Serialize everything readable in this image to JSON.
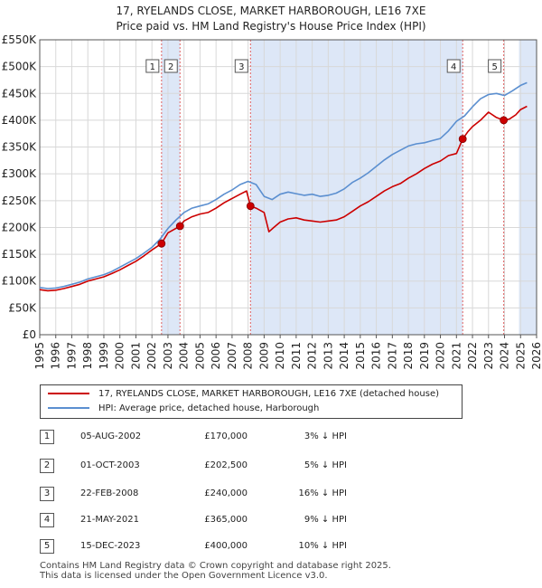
{
  "title_line1": "17, RYELANDS CLOSE, MARKET HARBOROUGH, LE16 7XE",
  "title_line2": "Price paid vs. HM Land Registry's House Price Index (HPI)",
  "colors": {
    "property": "#cc0000",
    "hpi": "#5b8fd0",
    "sale_vline": "#e06060",
    "shade": "#dde7f7"
  },
  "legend": {
    "property": "17, RYELANDS CLOSE, MARKET HARBOROUGH, LE16 7XE (detached house)",
    "hpi": "HPI: Average price, detached house, Harborough"
  },
  "sales": [
    {
      "n": "1",
      "date": "05-AUG-2002",
      "price": "£170,000",
      "hpi": "3% ↓ HPI",
      "t": 2002.6,
      "v": 170000
    },
    {
      "n": "2",
      "date": "01-OCT-2003",
      "price": "£202,500",
      "hpi": "5% ↓ HPI",
      "t": 2003.75,
      "v": 202500
    },
    {
      "n": "3",
      "date": "22-FEB-2008",
      "price": "£240,000",
      "hpi": "16% ↓ HPI",
      "t": 2008.15,
      "v": 240000
    },
    {
      "n": "4",
      "date": "21-MAY-2021",
      "price": "£365,000",
      "hpi": "9% ↓ HPI",
      "t": 2021.39,
      "v": 365000
    },
    {
      "n": "5",
      "date": "15-DEC-2023",
      "price": "£400,000",
      "hpi": "10% ↓ HPI",
      "t": 2023.95,
      "v": 400000
    }
  ],
  "footer_line1": "Contains HM Land Registry data © Crown copyright and database right 2025.",
  "footer_line2": "This data is licensed under the Open Government Licence v3.0.",
  "chart_data": {
    "type": "line",
    "title": "17, RYELANDS CLOSE, MARKET HARBOROUGH, LE16 7XE",
    "subtitle": "Price paid vs. HM Land Registry's House Price Index (HPI)",
    "xlabel": "",
    "ylabel": "",
    "xlim": [
      1995,
      2026
    ],
    "ylim": [
      0,
      550000
    ],
    "grid": true,
    "x_ticks": [
      "1995",
      "1996",
      "1997",
      "1998",
      "1999",
      "2000",
      "2001",
      "2002",
      "2003",
      "2004",
      "2005",
      "2006",
      "2007",
      "2008",
      "2009",
      "2010",
      "2011",
      "2012",
      "2013",
      "2014",
      "2015",
      "2016",
      "2017",
      "2018",
      "2019",
      "2020",
      "2021",
      "2022",
      "2023",
      "2024",
      "2025",
      "2026"
    ],
    "y_ticks": [
      {
        "v": 0,
        "label": "£0"
      },
      {
        "v": 50000,
        "label": "£50K"
      },
      {
        "v": 100000,
        "label": "£100K"
      },
      {
        "v": 150000,
        "label": "£150K"
      },
      {
        "v": 200000,
        "label": "£200K"
      },
      {
        "v": 250000,
        "label": "£250K"
      },
      {
        "v": 300000,
        "label": "£300K"
      },
      {
        "v": 350000,
        "label": "£350K"
      },
      {
        "v": 400000,
        "label": "£400K"
      },
      {
        "v": 450000,
        "label": "£450K"
      },
      {
        "v": 500000,
        "label": "£500K"
      },
      {
        "v": 550000,
        "label": "£550K"
      }
    ],
    "shaded_ranges": [
      [
        2002.6,
        2003.75
      ],
      [
        2008.15,
        2021.39
      ],
      [
        2024.9,
        2026
      ]
    ],
    "series": [
      {
        "name": "HPI: Average price, detached house, Harborough",
        "color": "#5b8fd0",
        "x": [
          1995,
          1995.5,
          1996,
          1996.5,
          1997,
          1997.5,
          1998,
          1998.5,
          1999,
          1999.5,
          2000,
          2000.5,
          2001,
          2001.5,
          2002,
          2002.5,
          2003,
          2003.5,
          2004,
          2004.5,
          2005,
          2005.5,
          2006,
          2006.5,
          2007,
          2007.5,
          2008,
          2008.5,
          2009,
          2009.5,
          2010,
          2010.5,
          2011,
          2011.5,
          2012,
          2012.5,
          2013,
          2013.5,
          2014,
          2014.5,
          2015,
          2015.5,
          2016,
          2016.5,
          2017,
          2017.5,
          2018,
          2018.5,
          2019,
          2019.5,
          2020,
          2020.5,
          2021,
          2021.5,
          2022,
          2022.5,
          2023,
          2023.5,
          2024,
          2024.5,
          2025,
          2025.4
        ],
        "values": [
          88000,
          86000,
          87000,
          90000,
          94000,
          98000,
          104000,
          108000,
          112000,
          118000,
          126000,
          134000,
          142000,
          152000,
          163000,
          178000,
          198000,
          214000,
          228000,
          236000,
          240000,
          244000,
          252000,
          262000,
          270000,
          280000,
          286000,
          280000,
          258000,
          252000,
          262000,
          266000,
          263000,
          260000,
          262000,
          258000,
          260000,
          264000,
          272000,
          284000,
          292000,
          302000,
          314000,
          326000,
          336000,
          344000,
          352000,
          356000,
          358000,
          362000,
          366000,
          380000,
          398000,
          408000,
          425000,
          440000,
          448000,
          450000,
          446000,
          455000,
          465000,
          470000
        ]
      },
      {
        "name": "17, RYELANDS CLOSE, MARKET HARBOROUGH, LE16 7XE (detached house)",
        "color": "#cc0000",
        "x": [
          1995,
          1995.5,
          1996,
          1996.5,
          1997,
          1997.5,
          1998,
          1998.5,
          1999,
          1999.5,
          2000,
          2000.5,
          2001,
          2001.5,
          2002,
          2002.6,
          2003,
          2003.75,
          2004,
          2004.5,
          2005,
          2005.5,
          2006,
          2006.5,
          2007,
          2007.5,
          2007.9,
          2008.15,
          2008.5,
          2009,
          2009.3,
          2009.6,
          2010,
          2010.5,
          2011,
          2011.5,
          2012,
          2012.5,
          2013,
          2013.5,
          2014,
          2014.5,
          2015,
          2015.5,
          2016,
          2016.5,
          2017,
          2017.5,
          2018,
          2018.5,
          2019,
          2019.5,
          2020,
          2020.5,
          2021,
          2021.39,
          2021.7,
          2022,
          2022.5,
          2023,
          2023.5,
          2023.95,
          2024.3,
          2024.7,
          2025,
          2025.4
        ],
        "values": [
          84000,
          82000,
          83000,
          86000,
          90000,
          94000,
          100000,
          104000,
          108000,
          114000,
          121000,
          129000,
          137000,
          147000,
          158000,
          170000,
          190000,
          202500,
          212000,
          220000,
          225000,
          228000,
          236000,
          246000,
          254000,
          262000,
          268000,
          240000,
          236000,
          228000,
          192000,
          200000,
          210000,
          216000,
          218000,
          214000,
          212000,
          210000,
          212000,
          214000,
          220000,
          230000,
          240000,
          248000,
          258000,
          268000,
          276000,
          282000,
          292000,
          300000,
          310000,
          318000,
          324000,
          334000,
          338000,
          365000,
          378000,
          388000,
          400000,
          415000,
          405000,
          400000,
          402000,
          410000,
          420000,
          426000
        ]
      }
    ],
    "markers": [
      {
        "label": "1",
        "x": 2002.6,
        "y": 170000
      },
      {
        "label": "2",
        "x": 2003.75,
        "y": 202500
      },
      {
        "label": "3",
        "x": 2008.15,
        "y": 240000
      },
      {
        "label": "4",
        "x": 2021.39,
        "y": 365000
      },
      {
        "label": "5",
        "x": 2023.95,
        "y": 400000
      }
    ]
  }
}
